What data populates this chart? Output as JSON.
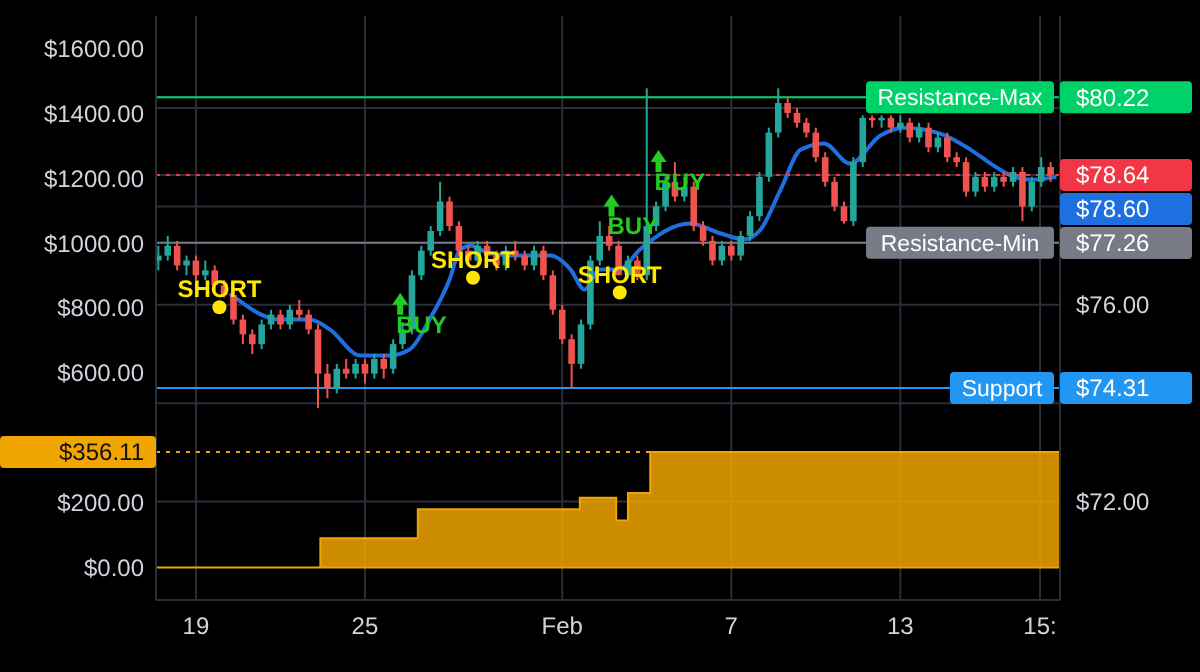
{
  "chart_data": {
    "type": "candlestick",
    "grid": true,
    "xlim": [
      "--01-17T14:00",
      "--02-18T16:00"
    ],
    "xticks": [
      {
        "value": "--01-19",
        "label": "19"
      },
      {
        "value": "--01-25",
        "label": "25"
      },
      {
        "value": "--02-01",
        "label": "Feb"
      },
      {
        "value": "--02-07",
        "label": "7"
      },
      {
        "value": "--02-13",
        "label": "13"
      },
      {
        "value": "--02-17T23:00",
        "label": "15:"
      }
    ],
    "ylim": [
      -100,
      1700
    ],
    "yticks": [
      {
        "value": 0,
        "label": "$0.00"
      },
      {
        "value": 200,
        "label": "$200.00"
      },
      {
        "value": 356.11,
        "label": "$356.11"
      },
      {
        "value": 600,
        "label": "$600.00"
      },
      {
        "value": 800,
        "label": "$800.00"
      },
      {
        "value": 1000,
        "label": "$1000.00"
      },
      {
        "value": 1200,
        "label": "$1200.00"
      },
      {
        "value": 1400,
        "label": "$1400.00"
      },
      {
        "value": 1600,
        "label": "$1600.00"
      }
    ],
    "y2lim": [
      70,
      81.87
    ],
    "y2ticks": [
      {
        "value": 72,
        "label": "$72.00"
      },
      {
        "value": 74,
        "label": null
      },
      {
        "value": 74.31,
        "label": "$74.31"
      },
      {
        "value": 76,
        "label": "$76.00"
      },
      {
        "value": 77.26,
        "label": "$77.26"
      },
      {
        "value": 78,
        "label": null
      },
      {
        "value": 78.64,
        "label": "$78.64"
      },
      {
        "value": 80,
        "label": null
      },
      {
        "value": 80.22,
        "label": "$80.22"
      }
    ],
    "ref_lines": [
      {
        "axis": "y2",
        "value": 80.22,
        "label": "Resistance-Max",
        "color": "#00d26a"
      },
      {
        "axis": "y2",
        "value": 78.64,
        "color": "#f23645",
        "line_style": "dotted"
      },
      {
        "axis": "y2",
        "value": 77.26,
        "label": "Resistance-Min",
        "color": "#787b86"
      },
      {
        "axis": "y2",
        "value": 74.31,
        "label": "Support",
        "color": "#2196f3"
      },
      {
        "axis": "y",
        "value": 356.11,
        "color": "#f0a500",
        "line_style": "dotted"
      }
    ],
    "series": [
      {
        "type": "area",
        "axis": "y",
        "color": "#f0a500",
        "x": [
          "--01-17T14:00",
          "--01-23T10:00",
          "--01-26T21:00",
          "--02-01T15:00",
          "--02-02T22:00",
          "--02-03T08:00",
          "--02-04T03:00",
          "--02-18T16:00"
        ],
        "values": [
          0,
          90,
          180,
          215,
          145,
          230,
          356.11,
          356.11
        ]
      },
      {
        "axis": "y2",
        "x": [
          "--01-17T16:00",
          "--01-18T00:00",
          "--01-18T08:00",
          "--01-18T16:00",
          "--01-19T00:00",
          "--01-19T08:00",
          "--01-19T16:00",
          "--01-20T00:00",
          "--01-20T08:00",
          "--01-20T16:00",
          "--01-21T00:00",
          "--01-21T08:00",
          "--01-21T16:00",
          "--01-22T00:00",
          "--01-22T08:00",
          "--01-22T16:00",
          "--01-23T00:00",
          "--01-23T08:00",
          "--01-23T16:00",
          "--01-24T00:00",
          "--01-24T08:00",
          "--01-24T16:00",
          "--01-25T00:00",
          "--01-25T08:00",
          "--01-25T16:00",
          "--01-26T00:00",
          "--01-26T08:00",
          "--01-26T16:00",
          "--01-27T00:00",
          "--01-27T08:00",
          "--01-27T16:00",
          "--01-28T00:00",
          "--01-28T08:00",
          "--01-28T16:00",
          "--01-29T00:00",
          "--01-29T08:00",
          "--01-29T16:00",
          "--01-30T00:00",
          "--01-30T08:00",
          "--01-30T16:00",
          "--01-31T00:00",
          "--01-31T08:00",
          "--01-31T16:00",
          "--02-01T00:00",
          "--02-01T08:00",
          "--02-01T16:00",
          "--02-02T00:00",
          "--02-02T08:00",
          "--02-02T16:00",
          "--02-03T00:00",
          "--02-03T08:00",
          "--02-03T16:00",
          "--02-04T00:00",
          "--02-04T08:00",
          "--02-04T16:00",
          "--02-05T00:00",
          "--02-05T08:00",
          "--02-05T16:00",
          "--02-06T00:00",
          "--02-06T08:00",
          "--02-06T16:00",
          "--02-07T00:00",
          "--02-07T08:00",
          "--02-07T16:00",
          "--02-08T00:00",
          "--02-08T08:00",
          "--02-08T16:00",
          "--02-09T00:00",
          "--02-09T08:00",
          "--02-09T16:00",
          "--02-10T00:00",
          "--02-10T08:00",
          "--02-10T16:00",
          "--02-11T00:00",
          "--02-11T08:00",
          "--02-11T16:00",
          "--02-12T00:00",
          "--02-12T08:00",
          "--02-12T16:00",
          "--02-13T00:00",
          "--02-13T08:00",
          "--02-13T16:00",
          "--02-14T00:00",
          "--02-14T08:00",
          "--02-14T16:00",
          "--02-15T00:00",
          "--02-15T08:00",
          "--02-15T16:00",
          "--02-16T00:00",
          "--02-16T08:00",
          "--02-16T16:00",
          "--02-17T00:00",
          "--02-17T08:00",
          "--02-17T16:00",
          "--02-18T00:00",
          "--02-18T08:00"
        ],
        "ohlc": [
          [
            76.9,
            77.2,
            76.7,
            77.0
          ],
          [
            77.0,
            77.4,
            76.9,
            77.2
          ],
          [
            77.2,
            77.3,
            76.7,
            76.8
          ],
          [
            76.8,
            77.0,
            76.6,
            76.9
          ],
          [
            76.9,
            77.0,
            76.5,
            76.6
          ],
          [
            76.6,
            76.9,
            76.5,
            76.7
          ],
          [
            76.7,
            76.8,
            76.3,
            76.4
          ],
          [
            76.4,
            76.5,
            76.15,
            76.2
          ],
          [
            76.2,
            76.3,
            75.6,
            75.7
          ],
          [
            75.7,
            75.8,
            75.2,
            75.4
          ],
          [
            75.4,
            75.5,
            75.0,
            75.2
          ],
          [
            75.2,
            75.7,
            75.1,
            75.6
          ],
          [
            75.6,
            75.9,
            75.5,
            75.8
          ],
          [
            75.8,
            75.9,
            75.5,
            75.6
          ],
          [
            75.6,
            76.0,
            75.5,
            75.9
          ],
          [
            75.9,
            76.1,
            75.7,
            75.8
          ],
          [
            75.8,
            75.9,
            75.4,
            75.5
          ],
          [
            75.5,
            75.6,
            73.9,
            74.6
          ],
          [
            74.6,
            74.8,
            74.1,
            74.3
          ],
          [
            74.3,
            74.8,
            74.2,
            74.7
          ],
          [
            74.7,
            74.9,
            74.5,
            74.6
          ],
          [
            74.6,
            74.9,
            74.5,
            74.8
          ],
          [
            74.8,
            74.9,
            74.4,
            74.6
          ],
          [
            74.6,
            75.0,
            74.5,
            74.9
          ],
          [
            74.9,
            75.0,
            74.5,
            74.7
          ],
          [
            74.7,
            75.3,
            74.6,
            75.2
          ],
          [
            75.2,
            75.65,
            75.1,
            75.5
          ],
          [
            75.5,
            76.7,
            75.4,
            76.6
          ],
          [
            76.6,
            77.2,
            76.5,
            77.1
          ],
          [
            77.1,
            77.6,
            77.0,
            77.5
          ],
          [
            77.5,
            78.5,
            77.4,
            78.1
          ],
          [
            78.1,
            78.2,
            77.5,
            77.6
          ],
          [
            77.6,
            77.7,
            77.0,
            77.1
          ],
          [
            77.1,
            77.2,
            76.8,
            76.9
          ],
          [
            76.9,
            77.3,
            76.8,
            77.2
          ],
          [
            77.2,
            77.3,
            76.9,
            77.0
          ],
          [
            77.0,
            77.1,
            76.7,
            76.8
          ],
          [
            76.8,
            77.2,
            76.7,
            77.1
          ],
          [
            77.1,
            77.3,
            76.9,
            77.0
          ],
          [
            77.0,
            77.1,
            76.7,
            76.8
          ],
          [
            76.8,
            77.2,
            76.7,
            77.1
          ],
          [
            77.1,
            77.2,
            76.5,
            76.6
          ],
          [
            76.6,
            76.7,
            75.8,
            75.9
          ],
          [
            75.9,
            76.0,
            75.2,
            75.3
          ],
          [
            75.3,
            75.4,
            74.3,
            74.8
          ],
          [
            74.8,
            75.7,
            74.7,
            75.6
          ],
          [
            75.6,
            77.0,
            75.5,
            76.9
          ],
          [
            76.9,
            77.7,
            76.8,
            77.4
          ],
          [
            77.4,
            77.6,
            77.1,
            77.2
          ],
          [
            77.2,
            77.3,
            76.6,
            76.6
          ],
          [
            76.6,
            77.0,
            76.55,
            76.9
          ],
          [
            76.9,
            77.0,
            76.5,
            76.6
          ],
          [
            76.6,
            80.4,
            76.5,
            77.6
          ],
          [
            77.6,
            78.1,
            77.5,
            78.0
          ],
          [
            78.0,
            78.6,
            77.9,
            78.5
          ],
          [
            78.5,
            78.9,
            78.1,
            78.2
          ],
          [
            78.2,
            78.6,
            78.1,
            78.4
          ],
          [
            78.4,
            78.5,
            77.5,
            77.6
          ],
          [
            77.6,
            77.7,
            77.2,
            77.3
          ],
          [
            77.3,
            77.4,
            76.8,
            76.9
          ],
          [
            76.9,
            77.3,
            76.8,
            77.2
          ],
          [
            77.2,
            77.3,
            76.9,
            77.0
          ],
          [
            77.0,
            77.5,
            76.9,
            77.4
          ],
          [
            77.4,
            77.9,
            77.3,
            77.8
          ],
          [
            77.8,
            78.7,
            77.7,
            78.6
          ],
          [
            78.6,
            79.6,
            78.5,
            79.5
          ],
          [
            79.5,
            80.4,
            79.4,
            80.1
          ],
          [
            80.1,
            80.2,
            79.8,
            79.9
          ],
          [
            79.9,
            80.0,
            79.6,
            79.7
          ],
          [
            79.7,
            79.8,
            79.4,
            79.5
          ],
          [
            79.5,
            79.6,
            78.9,
            79.0
          ],
          [
            79.0,
            79.1,
            78.4,
            78.5
          ],
          [
            78.5,
            78.6,
            77.9,
            78.0
          ],
          [
            78.0,
            78.1,
            77.65,
            77.7
          ],
          [
            77.7,
            79.0,
            77.6,
            78.9
          ],
          [
            78.9,
            79.85,
            78.8,
            79.8
          ],
          [
            79.8,
            79.85,
            79.6,
            79.75
          ],
          [
            79.75,
            79.85,
            79.6,
            79.8
          ],
          [
            79.8,
            79.85,
            79.5,
            79.6
          ],
          [
            79.6,
            79.85,
            79.5,
            79.7
          ],
          [
            79.7,
            79.8,
            79.3,
            79.4
          ],
          [
            79.4,
            79.7,
            79.3,
            79.6
          ],
          [
            79.6,
            79.7,
            79.1,
            79.2
          ],
          [
            79.2,
            79.5,
            79.1,
            79.4
          ],
          [
            79.4,
            79.5,
            78.9,
            79.0
          ],
          [
            79.0,
            79.1,
            78.8,
            78.9
          ],
          [
            78.9,
            79.0,
            78.2,
            78.3
          ],
          [
            78.3,
            78.7,
            78.2,
            78.6
          ],
          [
            78.6,
            78.7,
            78.3,
            78.4
          ],
          [
            78.4,
            78.7,
            78.3,
            78.6
          ],
          [
            78.6,
            78.7,
            78.4,
            78.5
          ],
          [
            78.5,
            78.8,
            78.4,
            78.7
          ],
          [
            78.7,
            78.8,
            77.7,
            78.0
          ],
          [
            78.0,
            78.6,
            77.9,
            78.5
          ],
          [
            78.5,
            79.0,
            78.4,
            78.8
          ],
          [
            78.8,
            78.9,
            78.5,
            78.64
          ]
        ]
      },
      {
        "type": "line",
        "axis": "y2",
        "color": "#1e6fe0",
        "x": [
          "--01-20T05:00",
          "--01-22T00:00",
          "--01-23T01:00",
          "--01-23T18:00",
          "--01-24T20:00",
          "--01-25T21:00",
          "--01-26T14:00",
          "--01-27T07:00",
          "--01-28T00:00",
          "--01-28T09:00",
          "--01-28T18:00",
          "--01-29T11:00",
          "--01-30T12:00",
          "--01-31T14:00",
          "--02-01T07:00",
          "--02-01T19:00",
          "--02-02T08:00",
          "--02-03T01:00",
          "--02-03T18:00",
          "--02-05T13:00",
          "--02-06T15:00",
          "--02-07T11:00",
          "--02-08T01:00",
          "--02-08T18:00",
          "--02-09T11:00",
          "--02-10T07:00",
          "--02-11T05:00",
          "--02-12T07:00",
          "--02-13T03:00",
          "--02-14T10:00",
          "--02-15T12:00",
          "--02-16T05:00",
          "--02-16T22:00",
          "--02-17T15:00",
          "--02-18T13:00"
        ],
        "values": [
          76.23,
          75.7,
          75.7,
          75.5,
          74.97,
          74.97,
          75.09,
          75.7,
          76.51,
          77.12,
          77.2,
          77.04,
          77.0,
          77.0,
          76.72,
          76.31,
          76.72,
          76.72,
          77.12,
          77.65,
          77.45,
          77.33,
          77.53,
          78.34,
          79.15,
          79.28,
          78.87,
          79.44,
          79.6,
          79.48,
          79.15,
          78.87,
          78.63,
          78.54,
          78.6
        ],
        "value_labels": [
          null,
          null,
          null,
          null,
          null,
          null,
          null,
          null,
          null,
          null,
          null,
          null,
          null,
          null,
          null,
          null,
          null,
          null,
          null,
          null,
          null,
          null,
          null,
          null,
          null,
          null,
          null,
          null,
          null,
          null,
          null,
          null,
          null,
          null,
          "$78.60"
        ]
      },
      {
        "type": "scatter",
        "axis": "y2",
        "color": "#ffe600",
        "marker": "circle",
        "x": [
          "--01-19T20:00",
          "--01-28T20:00",
          "--02-03T01:00"
        ],
        "values": [
          75.95,
          76.55,
          76.25
        ]
      },
      {
        "type": "scatter",
        "axis": "y2",
        "color": "#22cc22",
        "marker": "triangle",
        "x": [
          "--01-26T06:00",
          "--02-02T18:00",
          "--02-04T10:00"
        ],
        "values": [
          76.0,
          78.0,
          78.9
        ]
      }
    ],
    "annotations": [
      "SHORT",
      "SHORT",
      "SHORT",
      "BUY",
      "BUY",
      "BUY"
    ]
  }
}
